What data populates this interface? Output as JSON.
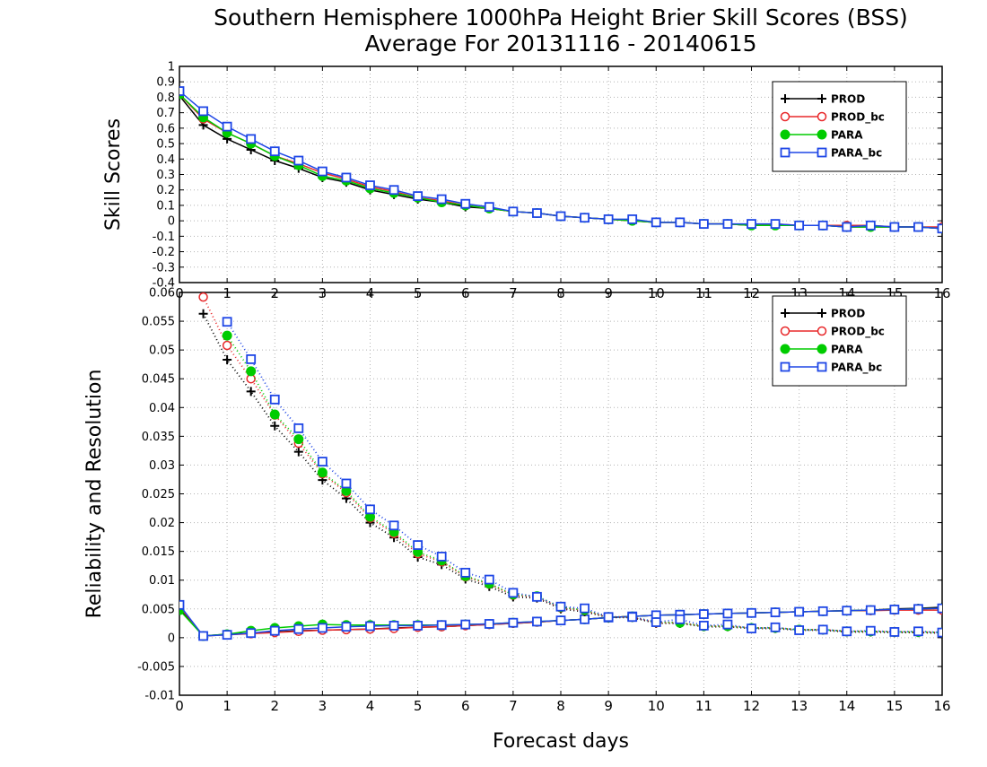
{
  "title": "Southern Hemisphere 1000hPa Height Brier Skill Scores (BSS)",
  "subtitle": "Average For 20131116 - 20140615",
  "xlabel": "Forecast days",
  "colors": {
    "PROD": "#000000",
    "PROD_bc": "#e8282a",
    "PARA": "#00cc00",
    "PARA_bc": "#1e46e6"
  },
  "chart_data": [
    {
      "type": "line",
      "ylabel": "Skill Scores",
      "xlim": [
        0,
        16
      ],
      "ylim": [
        -0.4,
        1
      ],
      "yticks": [
        -0.4,
        -0.3,
        -0.2,
        -0.1,
        0,
        0.1,
        0.2,
        0.3,
        0.4,
        0.5,
        0.6,
        0.7,
        0.8,
        0.9,
        1
      ],
      "ytick_labels": [
        "-0.4",
        "-0.3",
        "-0.2",
        "-0.1",
        "0",
        "0.1",
        "0.2",
        "0.3",
        "0.4",
        "0.5",
        "0.6",
        "0.7",
        "0.8",
        "0.9",
        "1"
      ],
      "xticks": [
        0,
        1,
        2,
        3,
        4,
        5,
        6,
        7,
        8,
        9,
        10,
        11,
        12,
        13,
        14,
        15,
        16
      ],
      "xtick_labels": [
        "0",
        "1",
        "2",
        "3",
        "4",
        "5",
        "6",
        "7",
        "8",
        "9",
        "10",
        "11",
        "12",
        "13",
        "14",
        "15",
        "16"
      ],
      "grid": true,
      "legend": "top-right",
      "x": [
        0,
        0.5,
        1,
        1.5,
        2,
        2.5,
        3,
        3.5,
        4,
        4.5,
        5,
        5.5,
        6,
        6.5,
        7,
        7.5,
        8,
        8.5,
        9,
        9.5,
        10,
        10.5,
        11,
        11.5,
        12,
        12.5,
        13,
        13.5,
        14,
        14.5,
        15,
        15.5,
        16
      ],
      "series": [
        {
          "name": "PROD",
          "marker": "plus",
          "style": "solid",
          "values": [
            0.81,
            0.62,
            0.53,
            0.46,
            0.39,
            0.34,
            0.28,
            0.25,
            0.2,
            0.17,
            0.14,
            0.12,
            0.09,
            0.08,
            0.06,
            0.05,
            0.03,
            0.02,
            0.01,
            0.0,
            -0.01,
            -0.01,
            -0.02,
            -0.02,
            -0.03,
            -0.03,
            -0.03,
            -0.03,
            -0.04,
            -0.04,
            -0.04,
            -0.04,
            -0.05
          ]
        },
        {
          "name": "PROD_bc",
          "marker": "circle",
          "style": "solid",
          "values": [
            0.82,
            0.66,
            0.57,
            0.5,
            0.42,
            0.37,
            0.31,
            0.27,
            0.22,
            0.19,
            0.15,
            0.13,
            0.1,
            0.08,
            0.06,
            0.05,
            0.03,
            0.02,
            0.01,
            0.0,
            -0.01,
            -0.01,
            -0.02,
            -0.02,
            -0.03,
            -0.02,
            -0.03,
            -0.03,
            -0.03,
            -0.03,
            -0.04,
            -0.04,
            -0.04
          ]
        },
        {
          "name": "PARA",
          "marker": "dot",
          "style": "solid",
          "values": [
            0.82,
            0.67,
            0.57,
            0.5,
            0.42,
            0.36,
            0.29,
            0.26,
            0.21,
            0.18,
            0.15,
            0.12,
            0.1,
            0.08,
            0.06,
            0.05,
            0.03,
            0.02,
            0.01,
            0.0,
            -0.01,
            -0.01,
            -0.02,
            -0.02,
            -0.03,
            -0.03,
            -0.03,
            -0.03,
            -0.04,
            -0.04,
            -0.04,
            -0.04,
            -0.05
          ]
        },
        {
          "name": "PARA_bc",
          "marker": "square",
          "style": "solid",
          "values": [
            0.84,
            0.71,
            0.61,
            0.53,
            0.45,
            0.39,
            0.32,
            0.28,
            0.23,
            0.2,
            0.16,
            0.14,
            0.11,
            0.09,
            0.06,
            0.05,
            0.03,
            0.02,
            0.01,
            0.01,
            -0.01,
            -0.01,
            -0.02,
            -0.02,
            -0.02,
            -0.02,
            -0.03,
            -0.03,
            -0.04,
            -0.03,
            -0.04,
            -0.04,
            -0.05
          ]
        }
      ]
    },
    {
      "type": "line",
      "ylabel": "Reliability and Resolution",
      "xlim": [
        0,
        16
      ],
      "ylim": [
        -0.01,
        0.06
      ],
      "yticks": [
        -0.01,
        -0.005,
        0,
        0.005,
        0.01,
        0.015,
        0.02,
        0.025,
        0.03,
        0.035,
        0.04,
        0.045,
        0.05,
        0.055,
        0.06
      ],
      "ytick_labels": [
        "-0.01",
        "-0.005",
        "0",
        "0.005",
        "0.01",
        "0.015",
        "0.02",
        "0.025",
        "0.03",
        "0.035",
        "0.04",
        "0.045",
        "0.05",
        "0.055",
        "0.06"
      ],
      "xticks": [
        0,
        1,
        2,
        3,
        4,
        5,
        6,
        7,
        8,
        9,
        10,
        11,
        12,
        13,
        14,
        15,
        16
      ],
      "xtick_labels": [
        "0",
        "1",
        "2",
        "3",
        "4",
        "5",
        "6",
        "7",
        "8",
        "9",
        "10",
        "11",
        "12",
        "13",
        "14",
        "15",
        "16"
      ],
      "grid": true,
      "legend": "top-right",
      "x": [
        0,
        0.5,
        1,
        1.5,
        2,
        2.5,
        3,
        3.5,
        4,
        4.5,
        5,
        5.5,
        6,
        6.5,
        7,
        7.5,
        8,
        8.5,
        9,
        9.5,
        10,
        10.5,
        11,
        11.5,
        12,
        12.5,
        13,
        13.5,
        14,
        14.5,
        15,
        15.5,
        16
      ],
      "series": [
        {
          "name": "PROD",
          "marker": "plus",
          "style": "solid",
          "component": "reliability",
          "values": [
            0.005,
            0.0003,
            0.0006,
            0.0008,
            0.001,
            0.0012,
            0.0013,
            0.0014,
            0.0015,
            0.0017,
            0.0018,
            0.0019,
            0.0021,
            0.0023,
            0.0025,
            0.0027,
            0.003,
            0.0032,
            0.0035,
            0.0037,
            0.0039,
            0.004,
            0.0041,
            0.0042,
            0.0043,
            0.0044,
            0.0045,
            0.0046,
            0.0047,
            0.0048,
            0.005,
            0.0051,
            0.0053
          ]
        },
        {
          "name": "PROD_bc",
          "marker": "circle",
          "style": "solid",
          "component": "reliability",
          "values": [
            0.0055,
            0.0003,
            0.0005,
            0.0007,
            0.0009,
            0.0011,
            0.0013,
            0.0014,
            0.0015,
            0.0016,
            0.0018,
            0.0019,
            0.0021,
            0.0023,
            0.0025,
            0.0027,
            0.003,
            0.0032,
            0.0035,
            0.0037,
            0.0039,
            0.004,
            0.0041,
            0.0042,
            0.0043,
            0.0044,
            0.0045,
            0.0046,
            0.0047,
            0.0047,
            0.0048,
            0.0048,
            0.0048
          ]
        },
        {
          "name": "PARA",
          "marker": "dot",
          "style": "solid",
          "component": "reliability",
          "values": [
            0.0048,
            0.0003,
            0.0006,
            0.0012,
            0.0017,
            0.002,
            0.0023,
            0.0022,
            0.0022,
            0.0022,
            0.0022,
            0.0022,
            0.0023,
            0.0024,
            0.0026,
            0.0028,
            0.003,
            0.0032,
            0.0035,
            0.0037,
            0.0039,
            0.004,
            0.0041,
            0.0042,
            0.0043,
            0.0044,
            0.0045,
            0.0046,
            0.0047,
            0.0048,
            0.0049,
            0.005,
            0.0051
          ]
        },
        {
          "name": "PARA_bc",
          "marker": "square",
          "style": "solid",
          "component": "reliability",
          "values": [
            0.0057,
            0.0003,
            0.0005,
            0.0008,
            0.0012,
            0.0015,
            0.0017,
            0.0019,
            0.002,
            0.0021,
            0.0021,
            0.0022,
            0.0023,
            0.0024,
            0.0026,
            0.0028,
            0.003,
            0.0032,
            0.0035,
            0.0037,
            0.0039,
            0.004,
            0.0041,
            0.0042,
            0.0043,
            0.0044,
            0.0045,
            0.0046,
            0.0047,
            0.0048,
            0.0049,
            0.005,
            0.0051
          ]
        },
        {
          "name": "PROD",
          "marker": "plus",
          "style": "dotted",
          "component": "resolution",
          "values": [
            null,
            0.0563,
            0.0483,
            0.0428,
            0.0368,
            0.0323,
            0.0274,
            0.0242,
            0.02,
            0.0174,
            0.014,
            0.0127,
            0.0102,
            0.0089,
            0.0071,
            0.0069,
            0.005,
            0.0045,
            0.0035,
            0.0035,
            0.0025,
            0.0025,
            0.0019,
            0.0019,
            0.0016,
            0.0016,
            0.0013,
            0.0013,
            0.001,
            0.001,
            0.0009,
            0.0009,
            0.0008
          ]
        },
        {
          "name": "PROD_bc",
          "marker": "circle",
          "style": "dotted",
          "component": "resolution",
          "values": [
            null,
            0.0592,
            0.0508,
            0.045,
            0.0387,
            0.0338,
            0.0285,
            0.0252,
            0.0208,
            0.0181,
            0.0146,
            0.0132,
            0.0106,
            0.0093,
            0.0074,
            0.0071,
            0.0052,
            0.0047,
            0.0036,
            0.0036,
            0.0026,
            0.0026,
            0.002,
            0.002,
            0.0017,
            0.0017,
            0.0014,
            0.0014,
            0.0011,
            0.0011,
            0.001,
            0.001,
            0.0009
          ]
        },
        {
          "name": "PARA",
          "marker": "dot",
          "style": "dotted",
          "component": "resolution",
          "values": [
            null,
            null,
            0.0525,
            0.0463,
            0.0388,
            0.0345,
            0.0287,
            0.0255,
            0.021,
            0.0184,
            0.0149,
            0.0134,
            0.0107,
            0.0094,
            0.0075,
            0.0072,
            0.0053,
            0.0048,
            0.0036,
            0.0036,
            0.0027,
            0.0026,
            0.002,
            0.002,
            0.0017,
            0.0017,
            0.0014,
            0.0014,
            0.0011,
            0.0011,
            0.001,
            0.001,
            0.0009
          ]
        },
        {
          "name": "PARA_bc",
          "marker": "square",
          "style": "dotted",
          "component": "resolution",
          "values": [
            null,
            null,
            0.0549,
            0.0484,
            0.0414,
            0.0364,
            0.0306,
            0.0268,
            0.0223,
            0.0195,
            0.0161,
            0.0141,
            0.0113,
            0.0101,
            0.0078,
            0.0071,
            0.0054,
            0.0051,
            0.0036,
            0.0036,
            0.0027,
            0.0032,
            0.0021,
            0.0023,
            0.0016,
            0.0018,
            0.0013,
            0.0014,
            0.0011,
            0.0012,
            0.001,
            0.0011,
            0.0009
          ]
        }
      ]
    }
  ]
}
